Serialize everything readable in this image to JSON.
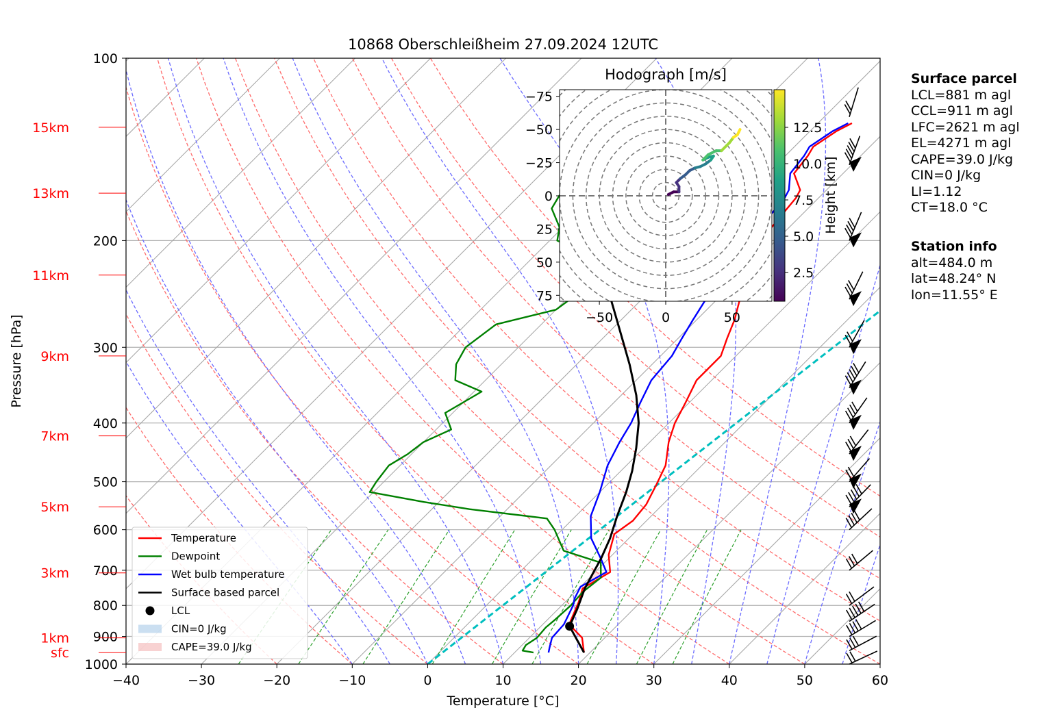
{
  "chart_data": {
    "type": "line",
    "title": "10868 Oberschleißheim 27.09.2024 12UTC",
    "xlabel": "Temperature [°C]",
    "ylabel": "Pressure [hPa]",
    "xlim": [
      -40,
      60
    ],
    "ylim_hpa": [
      1000,
      100
    ],
    "x_ticks": [
      "−40",
      "−30",
      "−20",
      "−10",
      "0",
      "10",
      "20",
      "30",
      "40",
      "50",
      "60"
    ],
    "y_ticks": [
      "100",
      "200",
      "300",
      "400",
      "500",
      "600",
      "700",
      "800",
      "900",
      "1000"
    ],
    "height_labels": [
      {
        "label": "15km",
        "p": 130
      },
      {
        "label": "13km",
        "p": 167
      },
      {
        "label": "11km",
        "p": 228
      },
      {
        "label": "9km",
        "p": 310
      },
      {
        "label": "7km",
        "p": 420
      },
      {
        "label": "5km",
        "p": 550
      },
      {
        "label": "3km",
        "p": 707
      },
      {
        "label": "1km",
        "p": 905
      },
      {
        "label": "sfc",
        "p": 957
      }
    ],
    "skew_deg_per_axis": 1.0,
    "series": [
      {
        "name": "Temperature",
        "color": "#ff0000",
        "points": [
          [
            19.2,
            957
          ],
          [
            17,
            905
          ],
          [
            13.5,
            860
          ],
          [
            11.8,
            790
          ],
          [
            10.5,
            750
          ],
          [
            12.0,
            705
          ],
          [
            9.5,
            660
          ],
          [
            7.5,
            610
          ],
          [
            8.2,
            580
          ],
          [
            7.8,
            545
          ],
          [
            6.5,
            505
          ],
          [
            5.2,
            470
          ],
          [
            2.5,
            430
          ],
          [
            0.8,
            400
          ],
          [
            -0.5,
            370
          ],
          [
            -2.0,
            340
          ],
          [
            -2.0,
            310
          ],
          [
            -3.5,
            290
          ],
          [
            -5.0,
            270
          ],
          [
            -7.0,
            250
          ],
          [
            -9.0,
            232
          ],
          [
            -10.5,
            215
          ],
          [
            -12.0,
            200
          ],
          [
            -12.5,
            185
          ],
          [
            -13.0,
            170
          ],
          [
            -13.5,
            165
          ],
          [
            -16.5,
            155
          ],
          [
            -17.0,
            145
          ],
          [
            -17.5,
            140
          ],
          [
            -16.5,
            132
          ],
          [
            -15.5,
            128
          ]
        ]
      },
      {
        "name": "Dewpoint",
        "color": "#008000",
        "points": [
          [
            12.5,
            957
          ],
          [
            10.8,
            950
          ],
          [
            10.5,
            930
          ],
          [
            11.0,
            905
          ],
          [
            10.8,
            870
          ],
          [
            11.0,
            845
          ],
          [
            11.2,
            800
          ],
          [
            11.0,
            760
          ],
          [
            11.5,
            720
          ],
          [
            9.5,
            680
          ],
          [
            3.0,
            650
          ],
          [
            -1.0,
            600
          ],
          [
            -3.5,
            575
          ],
          [
            -15.0,
            555
          ],
          [
            -22.0,
            540
          ],
          [
            -30.5,
            520
          ],
          [
            -31.0,
            500
          ],
          [
            -31.5,
            470
          ],
          [
            -30.5,
            450
          ],
          [
            -30.0,
            430
          ],
          [
            -28.0,
            410
          ],
          [
            -31.0,
            385
          ],
          [
            -29.0,
            355
          ],
          [
            -34.0,
            340
          ],
          [
            -36.0,
            320
          ],
          [
            -37.0,
            300
          ],
          [
            -36.0,
            275
          ],
          [
            -30.0,
            260
          ],
          [
            -29.0,
            240
          ],
          [
            -28.5,
            225
          ],
          [
            -31.0,
            215
          ],
          [
            -39.0,
            200
          ],
          [
            -40.5,
            190
          ],
          [
            -44.0,
            177
          ],
          [
            -45.0,
            165
          ],
          [
            -44.0,
            155
          ],
          [
            -46.0,
            145
          ],
          [
            -47.0,
            140
          ],
          [
            -48.0,
            133
          ],
          [
            -48.5,
            128
          ]
        ]
      },
      {
        "name": "Wet bulb temperature",
        "color": "#0000ff",
        "points": [
          [
            14.5,
            957
          ],
          [
            14.0,
            940
          ],
          [
            13.0,
            905
          ],
          [
            12.8,
            860
          ],
          [
            11.5,
            800
          ],
          [
            10.8,
            780
          ],
          [
            10.0,
            745
          ],
          [
            11.5,
            705
          ],
          [
            9.0,
            670
          ],
          [
            5.0,
            620
          ],
          [
            2.0,
            570
          ],
          [
            0.0,
            520
          ],
          [
            -2.5,
            470
          ],
          [
            -4.0,
            430
          ],
          [
            -5.0,
            400
          ],
          [
            -6.5,
            370
          ],
          [
            -8.0,
            340
          ],
          [
            -8.5,
            310
          ],
          [
            -9.5,
            290
          ],
          [
            -10.5,
            270
          ],
          [
            -11.5,
            250
          ],
          [
            -12.5,
            232
          ],
          [
            -13.5,
            215
          ],
          [
            -14.0,
            200
          ],
          [
            -14.0,
            185
          ],
          [
            -14.5,
            170
          ],
          [
            -15.0,
            165
          ],
          [
            -17.0,
            155
          ],
          [
            -17.5,
            145
          ],
          [
            -18.0,
            140
          ],
          [
            -17.0,
            132
          ],
          [
            -16.0,
            128
          ]
        ]
      },
      {
        "name": "Surface based parcel",
        "color": "#000000",
        "points": [
          [
            19.2,
            957
          ],
          [
            13.8,
            866
          ],
          [
            12.5,
            810
          ],
          [
            10.8,
            750
          ],
          [
            9.8,
            705
          ],
          [
            9.0,
            670
          ],
          [
            7.5,
            620
          ],
          [
            5.5,
            570
          ],
          [
            3.5,
            520
          ],
          [
            1.5,
            480
          ],
          [
            -1.0,
            440
          ],
          [
            -4.0,
            400
          ],
          [
            -8.0,
            360
          ],
          [
            -13.0,
            320
          ],
          [
            -19.0,
            280
          ],
          [
            -25.0,
            245
          ],
          [
            -31.0,
            215
          ],
          [
            -36.0,
            190
          ],
          [
            -42.0,
            165
          ],
          [
            -46.0,
            148
          ],
          [
            -50.0,
            133
          ]
        ]
      }
    ],
    "lcl_point": [
      13.8,
      866
    ],
    "ccl_dashed_line": {
      "color": "#00bfbf",
      "points": [
        [
          0,
          1000
        ],
        [
          22.5,
          100
        ]
      ]
    },
    "legend": {
      "placement": "lower-left",
      "entries": [
        "Temperature",
        "Dewpoint",
        "Wet bulb temperature",
        "Surface based parcel",
        "LCL",
        "CIN=0 J/kg",
        "CAPE=39.0 J/kg"
      ]
    },
    "wind_barbs_hpa": [
      1000,
      950,
      900,
      850,
      800,
      700,
      600,
      550,
      500,
      450,
      400,
      350,
      300,
      250,
      200,
      150,
      125
    ]
  },
  "hodograph": {
    "title": "Hodograph [m/s]",
    "ticks": [
      "−75",
      "−50",
      "−25",
      "0",
      "25",
      "50",
      "75"
    ],
    "x_ticks": [
      "−50",
      "0",
      "50"
    ],
    "colorbar_label": "Height [km]",
    "colorbar_ticks": [
      "2.5",
      "5.0",
      "7.5",
      "10.0",
      "12.5"
    ],
    "trace_uv": [
      [
        2,
        1
      ],
      [
        6,
        3
      ],
      [
        10,
        3
      ],
      [
        10,
        7
      ],
      [
        8,
        10
      ],
      [
        11,
        13
      ],
      [
        15,
        16
      ],
      [
        18,
        19
      ],
      [
        22,
        21
      ],
      [
        26,
        22
      ],
      [
        30,
        24
      ],
      [
        34,
        27
      ],
      [
        36,
        30
      ],
      [
        32,
        29
      ],
      [
        28,
        27
      ],
      [
        32,
        31
      ],
      [
        38,
        34
      ],
      [
        42,
        34
      ],
      [
        46,
        38
      ],
      [
        48,
        40
      ],
      [
        51,
        44
      ],
      [
        54,
        46
      ],
      [
        55,
        48
      ],
      [
        56,
        50
      ]
    ]
  },
  "surface_parcel": {
    "title": "Surface parcel",
    "lines": [
      "LCL=881 m agl",
      "CCL=911 m agl",
      "LFC=2621 m agl",
      "EL=4271 m agl",
      "CAPE=39.0 J/kg",
      "CIN=0 J/kg",
      "LI=1.12",
      "CT=18.0 °C"
    ]
  },
  "station_info": {
    "title": "Station info",
    "lines": [
      "alt=484.0 m",
      "lat=48.24° N",
      "lon=11.55° E"
    ]
  }
}
